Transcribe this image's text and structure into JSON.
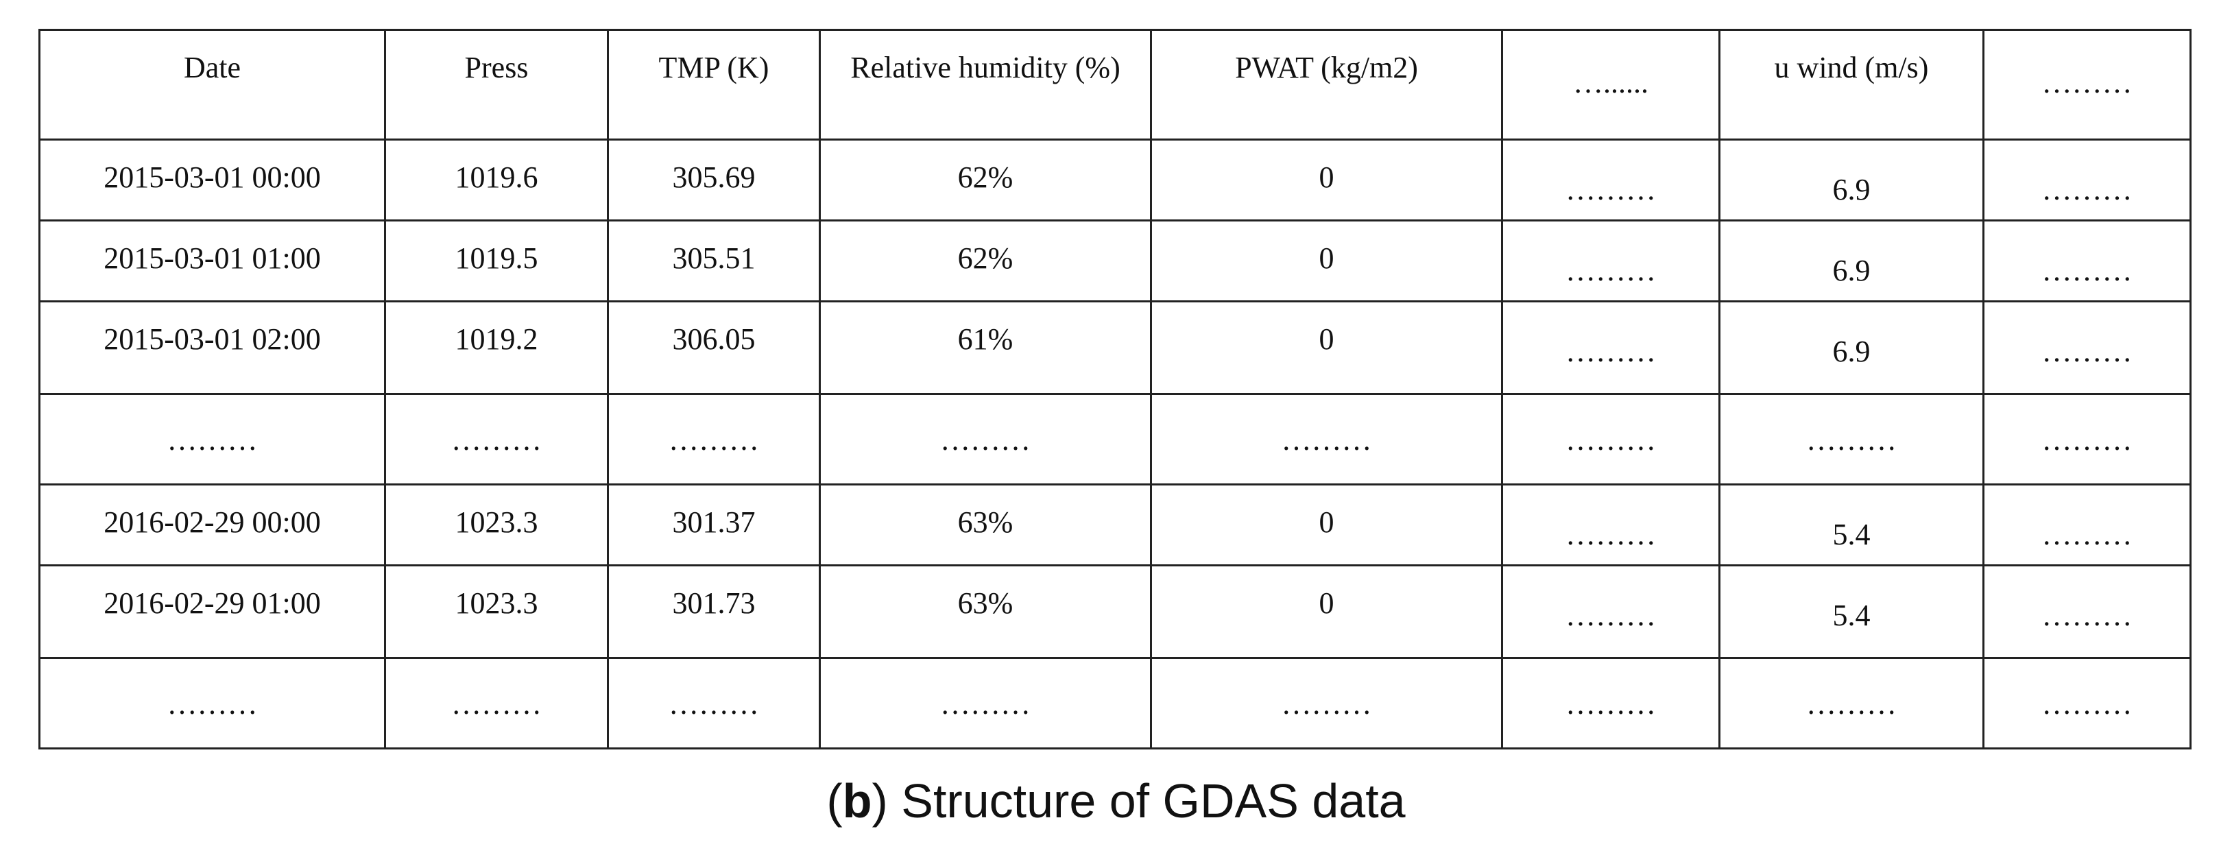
{
  "table": {
    "headers": [
      "Date",
      "Press",
      "TMP (K)",
      "Relative humidity (%)",
      "PWAT (kg/m2)",
      "…......",
      "u wind (m/s)",
      "………"
    ],
    "rows": [
      [
        "2015-03-01 00:00",
        "1019.6",
        "305.69",
        "62%",
        "0",
        "………",
        "6.9",
        "………"
      ],
      [
        "2015-03-01 01:00",
        "1019.5",
        "305.51",
        "62%",
        "0",
        "………",
        "6.9",
        "………"
      ],
      [
        "2015-03-01 02:00",
        "1019.2",
        "306.05",
        "61%",
        "0",
        "………",
        "6.9",
        "………"
      ],
      [
        "………",
        "………",
        "………",
        "………",
        "………",
        "………",
        "………",
        "………"
      ],
      [
        "2016-02-29 00:00",
        "1023.3",
        "301.37",
        "63%",
        "0",
        "………",
        "5.4",
        "………"
      ],
      [
        "2016-02-29 01:00",
        "1023.3",
        "301.73",
        "63%",
        "0",
        "………",
        "5.4",
        "………"
      ],
      [
        "………",
        "………",
        "………",
        "………",
        "………",
        "………",
        "………",
        "………"
      ]
    ]
  },
  "caption": {
    "label": "b",
    "text": "Structure of GDAS data"
  }
}
